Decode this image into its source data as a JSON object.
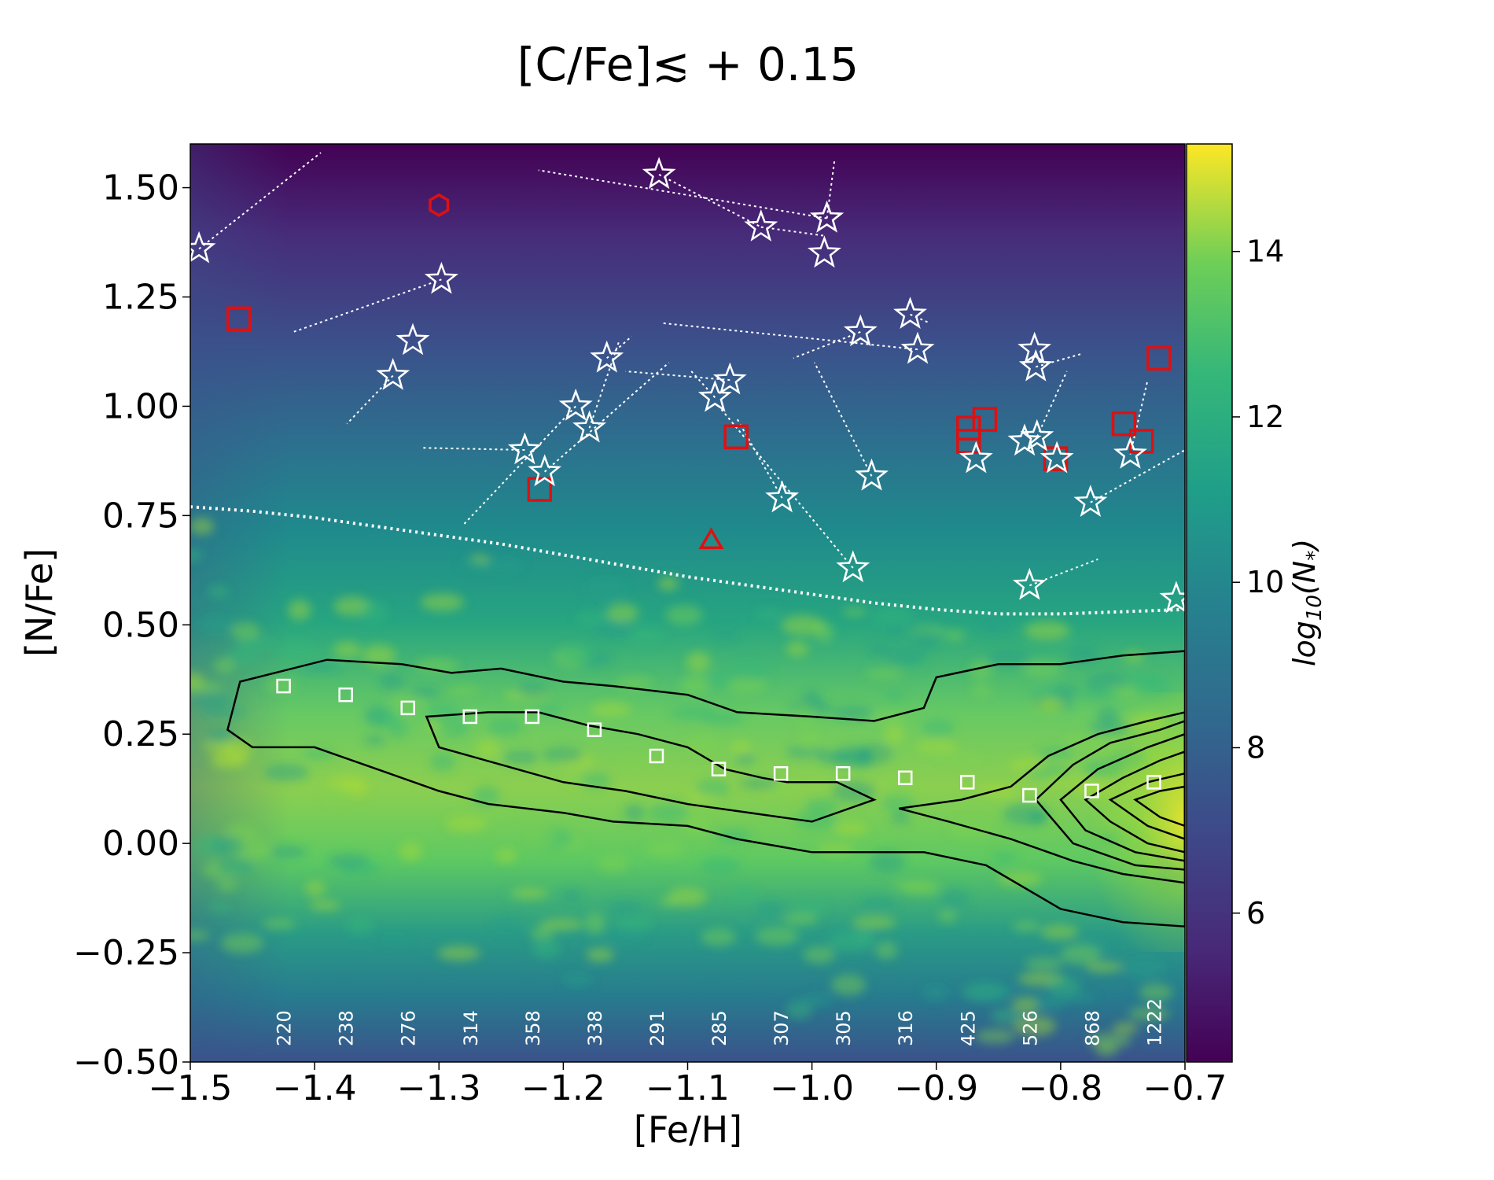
{
  "chart_data": {
    "type": "scatter",
    "title": "[C/Fe]≲ + 0.15",
    "xlabel": "[Fe/H]",
    "ylabel": "[N/Fe]",
    "xlim": [
      -1.5,
      -0.7
    ],
    "ylim": [
      -0.5,
      1.6
    ],
    "xticks": [
      -1.5,
      -1.4,
      -1.3,
      -1.2,
      -1.1,
      -1.0,
      -0.9,
      -0.8,
      -0.7
    ],
    "xtick_labels": [
      "−1.5",
      "−1.4",
      "−1.3",
      "−1.2",
      "−1.1",
      "−1.0",
      "−0.9",
      "−0.8",
      "−0.7"
    ],
    "yticks": [
      -0.5,
      -0.25,
      0.0,
      0.25,
      0.5,
      0.75,
      1.0,
      1.25,
      1.5
    ],
    "ytick_labels": [
      "−0.50",
      "−0.25",
      "0.00",
      "0.25",
      "0.50",
      "0.75",
      "1.00",
      "1.25",
      "1.50"
    ],
    "colorbar": {
      "label": "log10(N*)",
      "label_text": "log",
      "label_sub": "10",
      "label_rest": "(N",
      "label_star": "*",
      "label_close": ")",
      "range": [
        4.2,
        15.3
      ],
      "ticks": [
        6,
        8,
        10,
        12,
        14
      ],
      "tick_labels": [
        "6",
        "8",
        "10",
        "12",
        "14"
      ],
      "colormap": "viridis"
    },
    "density_background": "viridis density of sample stars, brightest along [N/Fe]≈0.1–0.3",
    "contours": {
      "color": "#000000",
      "levels": [
        [
          [
            -1.46,
            0.37
          ],
          [
            -1.39,
            0.42
          ],
          [
            -1.33,
            0.41
          ],
          [
            -1.29,
            0.39
          ],
          [
            -1.25,
            0.4
          ],
          [
            -1.2,
            0.37
          ],
          [
            -1.16,
            0.36
          ],
          [
            -1.1,
            0.34
          ],
          [
            -1.06,
            0.3
          ],
          [
            -1.0,
            0.29
          ],
          [
            -0.95,
            0.28
          ],
          [
            -0.91,
            0.31
          ],
          [
            -0.9,
            0.38
          ],
          [
            -0.85,
            0.41
          ],
          [
            -0.8,
            0.41
          ],
          [
            -0.75,
            0.43
          ],
          [
            -0.7,
            0.44
          ],
          [
            -0.7,
            -0.19
          ],
          [
            -0.75,
            -0.18
          ],
          [
            -0.8,
            -0.15
          ],
          [
            -0.86,
            -0.05
          ],
          [
            -0.91,
            -0.02
          ],
          [
            -0.96,
            -0.02
          ],
          [
            -1.0,
            -0.02
          ],
          [
            -1.06,
            0.01
          ],
          [
            -1.1,
            0.04
          ],
          [
            -1.16,
            0.05
          ],
          [
            -1.2,
            0.07
          ],
          [
            -1.26,
            0.09
          ],
          [
            -1.3,
            0.12
          ],
          [
            -1.34,
            0.16
          ],
          [
            -1.4,
            0.22
          ],
          [
            -1.45,
            0.22
          ],
          [
            -1.47,
            0.26
          ],
          [
            -1.46,
            0.37
          ]
        ],
        [
          [
            -1.31,
            0.29
          ],
          [
            -1.26,
            0.3
          ],
          [
            -1.22,
            0.3
          ],
          [
            -1.18,
            0.27
          ],
          [
            -1.14,
            0.25
          ],
          [
            -1.1,
            0.22
          ],
          [
            -1.07,
            0.17
          ],
          [
            -1.04,
            0.15
          ],
          [
            -1.02,
            0.14
          ],
          [
            -0.98,
            0.14
          ],
          [
            -0.95,
            0.1
          ],
          [
            -1.0,
            0.05
          ],
          [
            -1.05,
            0.07
          ],
          [
            -1.1,
            0.09
          ],
          [
            -1.15,
            0.12
          ],
          [
            -1.2,
            0.14
          ],
          [
            -1.25,
            0.18
          ],
          [
            -1.3,
            0.22
          ],
          [
            -1.31,
            0.29
          ]
        ],
        [
          [
            -0.93,
            0.08
          ],
          [
            -0.88,
            0.1
          ],
          [
            -0.84,
            0.13
          ],
          [
            -0.81,
            0.2
          ],
          [
            -0.77,
            0.25
          ],
          [
            -0.73,
            0.28
          ],
          [
            -0.7,
            0.3
          ],
          [
            -0.7,
            -0.09
          ],
          [
            -0.75,
            -0.07
          ],
          [
            -0.79,
            -0.04
          ],
          [
            -0.84,
            0.01
          ],
          [
            -0.89,
            0.05
          ],
          [
            -0.93,
            0.08
          ]
        ],
        [
          [
            -0.82,
            0.1
          ],
          [
            -0.79,
            0.18
          ],
          [
            -0.76,
            0.23
          ],
          [
            -0.72,
            0.26
          ],
          [
            -0.7,
            0.28
          ],
          [
            -0.7,
            -0.06
          ],
          [
            -0.74,
            -0.05
          ],
          [
            -0.79,
            0.0
          ],
          [
            -0.82,
            0.1
          ]
        ],
        [
          [
            -0.8,
            0.1
          ],
          [
            -0.77,
            0.17
          ],
          [
            -0.73,
            0.22
          ],
          [
            -0.7,
            0.25
          ],
          [
            -0.7,
            -0.04
          ],
          [
            -0.74,
            -0.02
          ],
          [
            -0.78,
            0.03
          ],
          [
            -0.8,
            0.1
          ]
        ],
        [
          [
            -0.78,
            0.1
          ],
          [
            -0.75,
            0.15
          ],
          [
            -0.72,
            0.19
          ],
          [
            -0.7,
            0.21
          ],
          [
            -0.7,
            -0.02
          ],
          [
            -0.73,
            0.0
          ],
          [
            -0.76,
            0.05
          ],
          [
            -0.78,
            0.1
          ]
        ],
        [
          [
            -0.76,
            0.1
          ],
          [
            -0.73,
            0.14
          ],
          [
            -0.7,
            0.16
          ],
          [
            -0.7,
            0.01
          ],
          [
            -0.73,
            0.04
          ],
          [
            -0.76,
            0.1
          ]
        ],
        [
          [
            -0.74,
            0.1
          ],
          [
            -0.72,
            0.12
          ],
          [
            -0.7,
            0.13
          ],
          [
            -0.7,
            0.04
          ],
          [
            -0.72,
            0.06
          ],
          [
            -0.74,
            0.1
          ]
        ]
      ]
    },
    "dividing_line": {
      "style": "dotted",
      "color": "#ffffff",
      "x": [
        -1.5,
        -1.45,
        -1.4,
        -1.35,
        -1.3,
        -1.25,
        -1.2,
        -1.15,
        -1.1,
        -1.05,
        -1.0,
        -0.95,
        -0.9,
        -0.85,
        -0.8,
        -0.75,
        -0.7
      ],
      "y": [
        0.77,
        0.76,
        0.745,
        0.725,
        0.705,
        0.685,
        0.66,
        0.635,
        0.61,
        0.59,
        0.57,
        0.55,
        0.535,
        0.525,
        0.525,
        0.53,
        0.535
      ]
    },
    "bin_medians": {
      "marker": "square",
      "color": "#ffffff",
      "x": [
        -1.425,
        -1.375,
        -1.325,
        -1.275,
        -1.225,
        -1.175,
        -1.125,
        -1.075,
        -1.025,
        -0.975,
        -0.925,
        -0.875,
        -0.825,
        -0.775,
        -0.725
      ],
      "y": [
        0.36,
        0.34,
        0.31,
        0.29,
        0.29,
        0.26,
        0.2,
        0.17,
        0.16,
        0.16,
        0.15,
        0.14,
        0.11,
        0.12,
        0.14
      ],
      "counts": [
        "220",
        "238",
        "276",
        "314",
        "358",
        "338",
        "291",
        "285",
        "307",
        "305",
        "316",
        "425",
        "526",
        "868",
        "1222"
      ]
    },
    "stars": {
      "marker": "star",
      "color": "#ffffff",
      "points": [
        {
          "x": -1.493,
          "y": 1.36,
          "x2": -1.395,
          "y2": 1.58
        },
        {
          "x": -1.298,
          "y": 1.29,
          "x2": -1.417,
          "y2": 1.17
        },
        {
          "x": -1.337,
          "y": 1.07,
          "x2": -1.374,
          "y2": 0.96
        },
        {
          "x": -1.321,
          "y": 1.15
        },
        {
          "x": -1.123,
          "y": 1.53,
          "x2": -1.041,
          "y2": 1.41
        },
        {
          "x": -1.041,
          "y": 1.41,
          "x2": -0.99,
          "y2": 1.39
        },
        {
          "x": -0.988,
          "y": 1.43,
          "x2": -1.22,
          "y2": 1.54
        },
        {
          "x": -0.988,
          "y": 1.43,
          "x2": -0.982,
          "y2": 1.56
        },
        {
          "x": -0.99,
          "y": 1.35
        },
        {
          "x": -1.165,
          "y": 1.11,
          "x2": -1.145,
          "y2": 1.16
        },
        {
          "x": -1.19,
          "y": 1.0,
          "x2": -1.28,
          "y2": 0.73
        },
        {
          "x": -1.179,
          "y": 0.95,
          "x2": -1.155,
          "y2": 1.15
        },
        {
          "x": -1.231,
          "y": 0.9,
          "x2": -1.315,
          "y2": 0.905
        },
        {
          "x": -1.215,
          "y": 0.85,
          "x2": -1.115,
          "y2": 1.1
        },
        {
          "x": -1.078,
          "y": 1.02,
          "x2": -1.097,
          "y2": 1.08
        },
        {
          "x": -1.066,
          "y": 1.06,
          "x2": -1.15,
          "y2": 1.08
        },
        {
          "x": -0.961,
          "y": 1.17,
          "x2": -1.015,
          "y2": 1.11
        },
        {
          "x": -0.921,
          "y": 1.21,
          "x2": -0.905,
          "y2": 1.19
        },
        {
          "x": -0.915,
          "y": 1.13,
          "x2": -1.12,
          "y2": 1.19
        },
        {
          "x": -0.952,
          "y": 0.84,
          "x2": -0.998,
          "y2": 1.1
        },
        {
          "x": -0.967,
          "y": 0.63,
          "x2": -1.075,
          "y2": 1.0
        },
        {
          "x": -1.024,
          "y": 0.79,
          "x2": -1.06,
          "y2": 0.97
        },
        {
          "x": -0.821,
          "y": 1.13
        },
        {
          "x": -0.82,
          "y": 1.09,
          "x2": -0.783,
          "y2": 1.12
        },
        {
          "x": -0.829,
          "y": 0.92
        },
        {
          "x": -0.819,
          "y": 0.93,
          "x2": -0.795,
          "y2": 1.08
        },
        {
          "x": -0.803,
          "y": 0.88
        },
        {
          "x": -0.868,
          "y": 0.88
        },
        {
          "x": -0.744,
          "y": 0.89,
          "x2": -0.73,
          "y2": 1.06
        },
        {
          "x": -0.776,
          "y": 0.78,
          "x2": -0.7,
          "y2": 0.9
        },
        {
          "x": -0.825,
          "y": 0.59,
          "x2": -0.77,
          "y2": 0.65
        },
        {
          "x": -0.707,
          "y": 0.56
        }
      ]
    },
    "red_squares": {
      "marker": "square",
      "color": "#dd1111",
      "x": [
        -1.461,
        -1.219,
        -1.061,
        -0.874,
        -0.861,
        -0.874,
        -0.804,
        -0.749,
        -0.735,
        -0.721
      ],
      "y": [
        1.2,
        0.81,
        0.93,
        0.95,
        0.97,
        0.92,
        0.88,
        0.96,
        0.92,
        1.11
      ]
    },
    "red_hexagon": {
      "marker": "hexagon",
      "color": "#dd1111",
      "x": [
        -1.3
      ],
      "y": [
        1.46
      ]
    },
    "red_triangle": {
      "marker": "triangle",
      "color": "#dd1111",
      "x": [
        -1.081
      ],
      "y": [
        0.69
      ]
    }
  }
}
